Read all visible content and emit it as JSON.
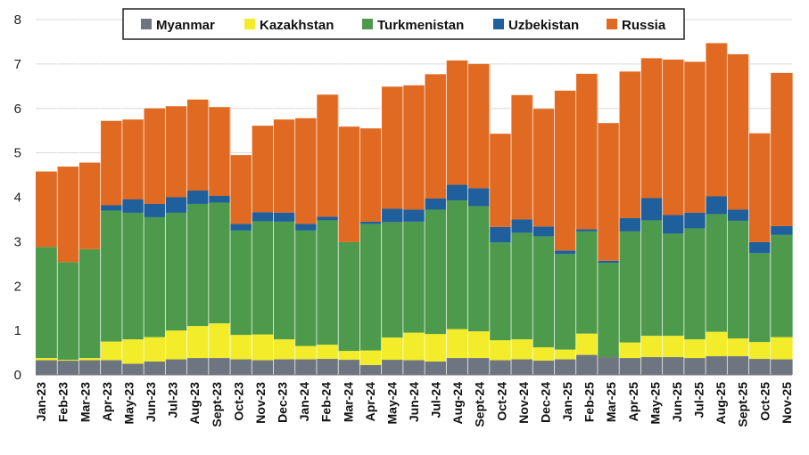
{
  "chart_data": {
    "type": "area",
    "stacked": true,
    "title": "",
    "xlabel": "",
    "ylabel": "",
    "ylim": [
      0,
      8
    ],
    "yticks": [
      "0",
      "1",
      "2",
      "3",
      "4",
      "5",
      "6",
      "7",
      "8"
    ],
    "grid": true,
    "legend_position": "top",
    "categories": [
      "Jan-23",
      "Feb-23",
      "Mar-23",
      "Apr-23",
      "May-23",
      "Jun-23",
      "Jul-23",
      "Aug-23",
      "Sept-23",
      "Oct-23",
      "Nov-23",
      "Dec-23",
      "Jan-24",
      "Feb-24",
      "Mar-24",
      "Apr-24",
      "May-24",
      "Jun-24",
      "Jul-24",
      "Aug-24",
      "Sept-24",
      "Oct-24",
      "Nov-24",
      "Dec-24",
      "Jan-25",
      "Feb-25",
      "Mar-25",
      "Apr-25",
      "May-25",
      "Jun-25",
      "Jul-25",
      "Aug-25",
      "Sept-25",
      "Oct-25",
      "Nov-25"
    ],
    "xtick_labels": [
      "Jan-23",
      "",
      "Feb-23",
      "",
      "Mar-23",
      "",
      "Apr-23",
      "",
      "May-23",
      "",
      "Jun-23",
      "",
      "Jul-23",
      "",
      "Aug-23",
      "",
      "Sept-23",
      "",
      "Oct-23",
      "",
      "Nov-23",
      "",
      "Dec-23",
      "",
      "Jan-24",
      "",
      "Feb-24",
      "",
      "Mar-24",
      "",
      "Apr-24",
      "",
      "May-24",
      "",
      "Jun-24",
      "",
      "Jul-24",
      "",
      "Aug-24",
      "",
      "Sept-24",
      "",
      "Oct-24",
      "",
      "Nov-24",
      "",
      "Dec-24",
      "",
      "Jan-25",
      "",
      "Feb-25",
      "",
      "Mar-25",
      "",
      "Apr-25",
      "",
      "May-25",
      "",
      "Jun-25",
      "",
      "Jul-25",
      "",
      "Aug-25",
      "",
      "Sept-25",
      "",
      "Oct-25",
      "",
      "Nov-25"
    ],
    "series": [
      {
        "name": "Myanmar",
        "color": "#6d7680",
        "values": [
          0.33,
          0.32,
          0.33,
          0.33,
          0.25,
          0.3,
          0.35,
          0.38,
          0.38,
          0.35,
          0.33,
          0.35,
          0.35,
          0.36,
          0.34,
          0.22,
          0.34,
          0.33,
          0.3,
          0.38,
          0.38,
          0.33,
          0.35,
          0.32,
          0.35,
          0.45,
          0.4,
          0.38,
          0.4,
          0.4,
          0.38,
          0.42,
          0.42,
          0.36,
          0.35
        ]
      },
      {
        "name": "Kazakhstan",
        "color": "#f2ec2a",
        "values": [
          0.05,
          0.02,
          0.05,
          0.42,
          0.55,
          0.55,
          0.65,
          0.72,
          0.78,
          0.55,
          0.58,
          0.45,
          0.3,
          0.32,
          0.2,
          0.33,
          0.5,
          0.62,
          0.62,
          0.65,
          0.6,
          0.45,
          0.45,
          0.3,
          0.22,
          0.48,
          0.0,
          0.35,
          0.48,
          0.48,
          0.42,
          0.55,
          0.4,
          0.38,
          0.5
        ]
      },
      {
        "name": "Turkmenistan",
        "color": "#4e9a4c",
        "values": [
          2.5,
          2.2,
          2.45,
          2.95,
          2.85,
          2.7,
          2.65,
          2.75,
          2.72,
          2.35,
          2.55,
          2.65,
          2.6,
          2.8,
          2.45,
          2.85,
          2.6,
          2.5,
          2.8,
          2.9,
          2.82,
          2.2,
          2.4,
          2.5,
          2.15,
          2.3,
          2.12,
          2.5,
          2.6,
          2.3,
          2.5,
          2.65,
          2.65,
          2.0,
          2.3
        ]
      },
      {
        "name": "Uzbekistan",
        "color": "#1f5f9b",
        "values": [
          0.0,
          0.0,
          0.0,
          0.12,
          0.3,
          0.3,
          0.35,
          0.3,
          0.15,
          0.15,
          0.2,
          0.2,
          0.15,
          0.08,
          0.0,
          0.05,
          0.3,
          0.27,
          0.25,
          0.35,
          0.4,
          0.35,
          0.3,
          0.22,
          0.08,
          0.05,
          0.05,
          0.3,
          0.5,
          0.42,
          0.35,
          0.4,
          0.25,
          0.25,
          0.2
        ]
      },
      {
        "name": "Russia",
        "color": "#e06a21",
        "values": [
          1.7,
          2.15,
          1.95,
          1.9,
          1.8,
          2.15,
          2.05,
          2.05,
          2.0,
          1.55,
          1.95,
          2.1,
          2.38,
          2.75,
          2.6,
          2.1,
          2.75,
          2.8,
          2.8,
          2.8,
          2.8,
          2.1,
          2.8,
          2.65,
          3.6,
          3.5,
          3.1,
          3.3,
          3.15,
          3.5,
          3.4,
          3.45,
          3.5,
          2.45,
          3.45
        ]
      }
    ]
  }
}
